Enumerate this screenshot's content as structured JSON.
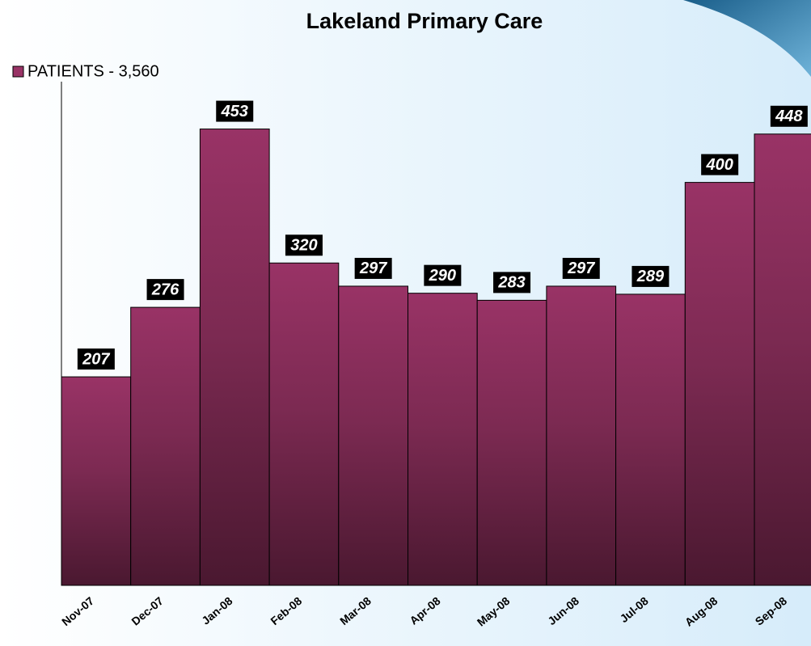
{
  "chart_data": {
    "type": "bar",
    "title": "Lakeland Primary Care",
    "categories": [
      "Nov-07",
      "Dec-07",
      "Jan-08",
      "Feb-08",
      "Mar-08",
      "Apr-08",
      "May-08",
      "Jun-08",
      "Jul-08",
      "Aug-08",
      "Sep-08"
    ],
    "series": [
      {
        "name": "PATIENTS - 3,560",
        "color": "#993366",
        "values": [
          207,
          276,
          453,
          320,
          297,
          290,
          283,
          297,
          289,
          400,
          448
        ]
      }
    ],
    "ylim": [
      0,
      500
    ],
    "legend": "top-left",
    "data_labels": true
  }
}
